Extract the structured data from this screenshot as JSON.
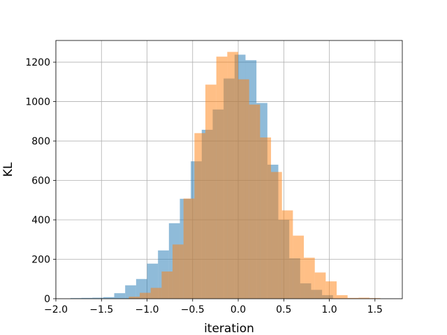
{
  "chart_data": {
    "type": "bar",
    "title": "",
    "xlabel": "iteration",
    "ylabel": "KL",
    "xlim": [
      -2.0,
      1.8
    ],
    "ylim": [
      0,
      1310
    ],
    "xticks": [
      -2.0,
      -1.5,
      -1.0,
      -0.5,
      0.0,
      0.5,
      1.0,
      1.5
    ],
    "xtick_labels": [
      "−2.0",
      "−1.5",
      "−1.0",
      "−0.5",
      "0.0",
      "0.5",
      "1.0",
      "1.5"
    ],
    "yticks": [
      0,
      200,
      400,
      600,
      800,
      1000,
      1200
    ],
    "ytick_labels": [
      "0",
      "200",
      "400",
      "600",
      "800",
      "1000",
      "1200"
    ],
    "grid": true,
    "legend": "none",
    "series": [
      {
        "color": "#1f77b4",
        "alpha": 0.5,
        "bins": [
          {
            "x0": -1.84,
            "x1": -1.72,
            "count": 3
          },
          {
            "x0": -1.72,
            "x1": -1.6,
            "count": 4
          },
          {
            "x0": -1.6,
            "x1": -1.48,
            "count": 5
          },
          {
            "x0": -1.48,
            "x1": -1.36,
            "count": 8
          },
          {
            "x0": -1.36,
            "x1": -1.24,
            "count": 28
          },
          {
            "x0": -1.24,
            "x1": -1.12,
            "count": 68
          },
          {
            "x0": -1.12,
            "x1": -1.0,
            "count": 100
          },
          {
            "x0": -1.0,
            "x1": -0.88,
            "count": 178
          },
          {
            "x0": -0.88,
            "x1": -0.76,
            "count": 245
          },
          {
            "x0": -0.76,
            "x1": -0.64,
            "count": 383
          },
          {
            "x0": -0.64,
            "x1": -0.52,
            "count": 507
          },
          {
            "x0": -0.52,
            "x1": -0.4,
            "count": 697
          },
          {
            "x0": -0.4,
            "x1": -0.28,
            "count": 857
          },
          {
            "x0": -0.28,
            "x1": -0.16,
            "count": 960
          },
          {
            "x0": -0.16,
            "x1": -0.04,
            "count": 1117
          },
          {
            "x0": -0.04,
            "x1": 0.08,
            "count": 1238
          },
          {
            "x0": 0.08,
            "x1": 0.2,
            "count": 1210
          },
          {
            "x0": 0.2,
            "x1": 0.32,
            "count": 993
          },
          {
            "x0": 0.32,
            "x1": 0.44,
            "count": 680
          },
          {
            "x0": 0.44,
            "x1": 0.56,
            "count": 400
          },
          {
            "x0": 0.56,
            "x1": 0.68,
            "count": 205
          },
          {
            "x0": 0.68,
            "x1": 0.8,
            "count": 78
          },
          {
            "x0": 0.8,
            "x1": 0.92,
            "count": 45
          },
          {
            "x0": 0.92,
            "x1": 1.04,
            "count": 18
          }
        ]
      },
      {
        "color": "#ff7f0e",
        "alpha": 0.5,
        "bins": [
          {
            "x0": -1.2,
            "x1": -1.08,
            "count": 10
          },
          {
            "x0": -1.08,
            "x1": -0.96,
            "count": 30
          },
          {
            "x0": -0.96,
            "x1": -0.84,
            "count": 55
          },
          {
            "x0": -0.84,
            "x1": -0.72,
            "count": 138
          },
          {
            "x0": -0.72,
            "x1": -0.6,
            "count": 275
          },
          {
            "x0": -0.6,
            "x1": -0.48,
            "count": 508
          },
          {
            "x0": -0.48,
            "x1": -0.36,
            "count": 840
          },
          {
            "x0": -0.36,
            "x1": -0.24,
            "count": 1086
          },
          {
            "x0": -0.24,
            "x1": -0.12,
            "count": 1228
          },
          {
            "x0": -0.12,
            "x1": 0.0,
            "count": 1252
          },
          {
            "x0": 0.0,
            "x1": 0.12,
            "count": 1113
          },
          {
            "x0": 0.12,
            "x1": 0.24,
            "count": 985
          },
          {
            "x0": 0.24,
            "x1": 0.36,
            "count": 818
          },
          {
            "x0": 0.36,
            "x1": 0.48,
            "count": 643
          },
          {
            "x0": 0.48,
            "x1": 0.6,
            "count": 448
          },
          {
            "x0": 0.6,
            "x1": 0.72,
            "count": 320
          },
          {
            "x0": 0.72,
            "x1": 0.84,
            "count": 208
          },
          {
            "x0": 0.84,
            "x1": 0.96,
            "count": 133
          },
          {
            "x0": 0.96,
            "x1": 1.08,
            "count": 88
          },
          {
            "x0": 1.08,
            "x1": 1.2,
            "count": 18
          },
          {
            "x0": 1.2,
            "x1": 1.32,
            "count": 4
          },
          {
            "x0": 1.32,
            "x1": 1.44,
            "count": 5
          },
          {
            "x0": 1.44,
            "x1": 1.56,
            "count": 3
          }
        ]
      }
    ]
  }
}
